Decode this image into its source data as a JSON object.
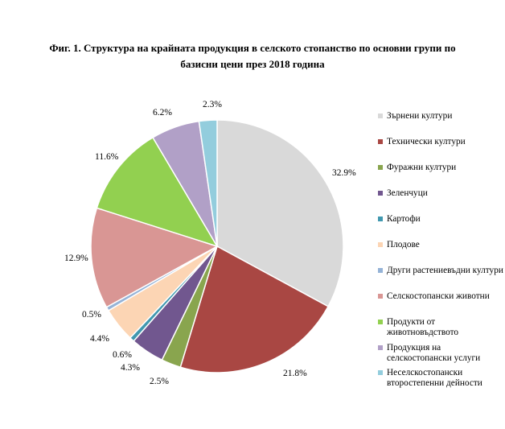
{
  "chart_data": {
    "type": "pie",
    "title_lines": [
      "Фиг. 1. Структура  на крайната продукция в селското стопанство по основни групи по",
      "базисни цени през 2018 година"
    ],
    "legend_position": "right",
    "slices": [
      {
        "label": "Зърнени култури",
        "value": 32.9,
        "value_label": "32.9%",
        "color": "#d9d9d9"
      },
      {
        "label": "Технически култури",
        "value": 21.8,
        "value_label": "21.8%",
        "color": "#a94743"
      },
      {
        "label": "Фуражни култури",
        "value": 2.5,
        "value_label": "2.5%",
        "color": "#89a54e"
      },
      {
        "label": "Зеленчуци",
        "value": 4.3,
        "value_label": "4.3%",
        "color": "#71578f"
      },
      {
        "label": "Картофи",
        "value": 0.6,
        "value_label": "0.6%",
        "color": "#4198af"
      },
      {
        "label": "Плодове",
        "value": 4.4,
        "value_label": "4.4%",
        "color": "#fcd5b4"
      },
      {
        "label": "Други растениевъдни култури",
        "value": 0.5,
        "value_label": "0.5%",
        "color": "#95b3d7"
      },
      {
        "label": "Селскостопански животни",
        "value": 12.9,
        "value_label": "12.9%",
        "color": "#d99694"
      },
      {
        "label": "Продукти от животновъдството",
        "value": 11.6,
        "value_label": "11.6%",
        "color": "#92d050"
      },
      {
        "label": "Продукция на селскостопански услуги",
        "value": 6.2,
        "value_label": "6.2%",
        "color": "#b1a0c7"
      },
      {
        "label": "Неселскостопански второстепенни дейности",
        "value": 2.3,
        "value_label": "2.3%",
        "color": "#93cddd"
      }
    ]
  }
}
